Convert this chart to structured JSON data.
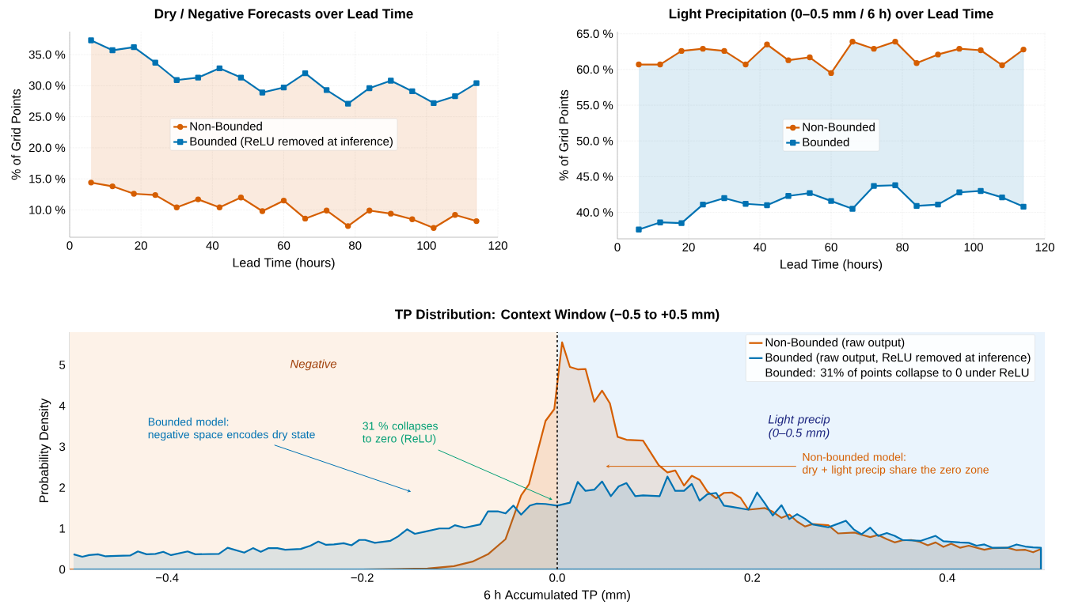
{
  "chart_data": [
    {
      "type": "line",
      "title": "Dry / Negative Forecasts over Lead Time",
      "xlabel": "Lead Time (hours)",
      "ylabel": "% of Grid Points",
      "x": [
        6,
        12,
        18,
        24,
        30,
        36,
        42,
        48,
        54,
        60,
        66,
        72,
        78,
        84,
        90,
        96,
        102,
        108,
        114
      ],
      "series": [
        {
          "name": "Non-Bounded",
          "color": "#d55e00",
          "marker": "circle",
          "values": [
            14.4,
            13.8,
            12.6,
            12.4,
            10.4,
            11.7,
            10.4,
            12.0,
            9.8,
            11.5,
            8.6,
            9.9,
            7.4,
            9.9,
            9.4,
            8.5,
            7.1,
            9.2,
            8.2
          ],
          "lower": [
            14.4,
            13.8,
            12.6,
            12.4,
            10.4,
            11.7,
            10.4,
            12.0,
            9.8,
            11.5,
            8.6,
            9.9,
            7.4,
            9.9,
            9.4,
            8.5,
            7.1,
            9.2,
            8.2
          ],
          "upper": [
            37.3,
            35.7,
            36.2,
            33.7,
            30.9,
            31.3,
            32.8,
            31.3,
            28.9,
            29.7,
            32.0,
            29.3,
            27.1,
            29.6,
            30.8,
            29.1,
            27.2,
            28.3,
            30.4
          ]
        },
        {
          "name": "Bounded (ReLU removed at inference)",
          "color": "#0072b2",
          "marker": "square",
          "values": [
            37.3,
            35.7,
            36.2,
            33.7,
            30.9,
            31.3,
            32.8,
            31.3,
            28.9,
            29.7,
            32.0,
            29.3,
            27.1,
            29.6,
            30.8,
            29.1,
            27.2,
            28.3,
            30.4
          ]
        }
      ],
      "xlim": [
        0,
        120
      ],
      "xticks": [
        0,
        20,
        40,
        60,
        80,
        100,
        120
      ],
      "ylim": [
        5.6,
        38.7
      ],
      "yticks": [
        {
          "value": 10,
          "label": "10.0 %"
        },
        {
          "value": 15,
          "label": "15.0 %"
        },
        {
          "value": 20,
          "label": "20.0 %"
        },
        {
          "value": 25,
          "label": "25.0 %"
        },
        {
          "value": 30,
          "label": "30.0 %"
        },
        {
          "value": 35,
          "label": "35.0 %"
        }
      ],
      "grid": true,
      "legend": "center"
    },
    {
      "type": "line",
      "title": "Light Precipitation (0–0.5 mm / 6 h) over Lead Time",
      "xlabel": "Lead Time (hours)",
      "ylabel": "% of Grid Points",
      "x": [
        6,
        12,
        18,
        24,
        30,
        36,
        42,
        48,
        54,
        60,
        66,
        72,
        78,
        84,
        90,
        96,
        102,
        108,
        114
      ],
      "series": [
        {
          "name": "Non-Bounded",
          "color": "#d55e00",
          "marker": "circle",
          "values": [
            60.7,
            60.7,
            62.6,
            62.9,
            62.6,
            60.7,
            63.5,
            61.3,
            61.7,
            59.5,
            63.9,
            62.9,
            63.9,
            60.9,
            62.1,
            62.9,
            62.7,
            60.6,
            62.8
          ]
        },
        {
          "name": "Bounded",
          "color": "#0072b2",
          "marker": "square",
          "values": [
            37.6,
            38.6,
            38.5,
            41.1,
            42.0,
            41.2,
            41.0,
            42.3,
            42.7,
            41.6,
            40.5,
            43.7,
            43.8,
            40.9,
            41.1,
            42.8,
            43.0,
            42.1,
            40.8
          ],
          "lower": [
            37.6,
            38.6,
            38.5,
            41.1,
            42.0,
            41.2,
            41.0,
            42.3,
            42.7,
            41.6,
            40.5,
            43.7,
            43.8,
            40.9,
            41.1,
            42.8,
            43.0,
            42.1,
            40.8
          ],
          "upper": [
            60.7,
            60.7,
            62.6,
            62.9,
            62.6,
            60.7,
            63.5,
            61.3,
            61.7,
            59.5,
            63.9,
            62.9,
            63.9,
            60.9,
            62.1,
            62.9,
            62.7,
            60.6,
            62.8
          ]
        }
      ],
      "xlim": [
        0,
        120
      ],
      "xticks": [
        0,
        20,
        40,
        60,
        80,
        100,
        120
      ],
      "ylim": [
        36.3,
        65.3
      ],
      "yticks": [
        {
          "value": 40,
          "label": "40.0 %"
        },
        {
          "value": 45,
          "label": "45.0 %"
        },
        {
          "value": 50,
          "label": "50.0 %"
        },
        {
          "value": 55,
          "label": "55.0 %"
        },
        {
          "value": 60,
          "label": "60.0 %"
        },
        {
          "value": 65,
          "label": "65.0 %"
        }
      ],
      "grid": true,
      "legend": "center"
    },
    {
      "type": "area",
      "title": "TP Distribution: Context Window (−0.5 to +0.5 mm)",
      "xlabel": "6 h Accumulated TP (mm)",
      "ylabel": "Probability Density",
      "series": [
        {
          "name": "Non-Bounded (raw output)",
          "color": "#d55e00",
          "x": [
            -0.5,
            -0.3,
            -0.2,
            -0.17,
            -0.133,
            -0.106,
            -0.087,
            -0.071,
            -0.053,
            -0.037,
            -0.029,
            -0.012,
            -0.003,
            0.005,
            0.013,
            0.021,
            0.029,
            0.038,
            0.046,
            0.054,
            0.062,
            0.071,
            0.088,
            0.104,
            0.113,
            0.121,
            0.13,
            0.138,
            0.146,
            0.154,
            0.163,
            0.171,
            0.179,
            0.188,
            0.196,
            0.213,
            0.221,
            0.23,
            0.238,
            0.246,
            0.254,
            0.262,
            0.278,
            0.288,
            0.305,
            0.313,
            0.321,
            0.329,
            0.338,
            0.346,
            0.354,
            0.363,
            0.371,
            0.38,
            0.388,
            0.396,
            0.404,
            0.413,
            0.422,
            0.43,
            0.438,
            0.446,
            0.462,
            0.471,
            0.48,
            0.488,
            0.496
          ],
          "values": [
            0.0,
            0.0,
            0.0,
            0.01,
            0.02,
            0.08,
            0.19,
            0.37,
            0.74,
            1.81,
            2.08,
            3.63,
            3.92,
            5.55,
            4.95,
            4.89,
            4.9,
            4.1,
            4.37,
            4.06,
            3.24,
            3.17,
            3.15,
            2.55,
            2.37,
            2.42,
            2.05,
            2.29,
            2.19,
            1.9,
            1.74,
            1.87,
            1.88,
            1.75,
            1.46,
            1.5,
            1.41,
            1.26,
            1.34,
            1.17,
            1.05,
            1.11,
            1.08,
            0.88,
            0.9,
            0.84,
            0.79,
            0.84,
            0.74,
            0.66,
            0.71,
            0.72,
            0.68,
            0.59,
            0.66,
            0.55,
            0.63,
            0.53,
            0.58,
            0.53,
            0.48,
            0.52,
            0.53,
            0.47,
            0.48,
            0.42,
            0.5
          ]
        },
        {
          "name": "Bounded (raw output, ReLU removed at inference)",
          "color": "#0072b2",
          "x": [
            -0.496,
            -0.487,
            -0.48,
            -0.471,
            -0.463,
            -0.452,
            -0.438,
            -0.43,
            -0.421,
            -0.412,
            -0.404,
            -0.396,
            -0.379,
            -0.371,
            -0.347,
            -0.338,
            -0.321,
            -0.312,
            -0.304,
            -0.296,
            -0.287,
            -0.279,
            -0.263,
            -0.253,
            -0.245,
            -0.237,
            -0.229,
            -0.219,
            -0.211,
            -0.203,
            -0.197,
            -0.187,
            -0.171,
            -0.163,
            -0.154,
            -0.146,
            -0.136,
            -0.121,
            -0.111,
            -0.105,
            -0.095,
            -0.079,
            -0.071,
            -0.061,
            -0.053,
            -0.045,
            -0.037,
            -0.028,
            -0.021,
            -0.012,
            0.0,
            0.013,
            0.021,
            0.029,
            0.038,
            0.046,
            0.055,
            0.063,
            0.071,
            0.08,
            0.088,
            0.105,
            0.113,
            0.121,
            0.13,
            0.138,
            0.146,
            0.154,
            0.163,
            0.171,
            0.179,
            0.196,
            0.205,
            0.213,
            0.221,
            0.23,
            0.238,
            0.246,
            0.254,
            0.262,
            0.278,
            0.286,
            0.296,
            0.304,
            0.312,
            0.321,
            0.329,
            0.338,
            0.346,
            0.354,
            0.373,
            0.388,
            0.396,
            0.413,
            0.422,
            0.43,
            0.438,
            0.446,
            0.462,
            0.471,
            0.48,
            0.488,
            0.496
          ],
          "values": [
            0.37,
            0.31,
            0.35,
            0.37,
            0.32,
            0.33,
            0.34,
            0.44,
            0.37,
            0.38,
            0.43,
            0.35,
            0.44,
            0.37,
            0.38,
            0.53,
            0.41,
            0.52,
            0.43,
            0.52,
            0.52,
            0.48,
            0.5,
            0.58,
            0.68,
            0.6,
            0.61,
            0.64,
            0.59,
            0.72,
            0.72,
            0.65,
            0.7,
            0.81,
            0.98,
            0.87,
            0.92,
            1.0,
            1.0,
            1.08,
            1.02,
            1.1,
            1.42,
            1.42,
            1.37,
            1.56,
            1.34,
            1.56,
            1.61,
            1.6,
            1.56,
            1.63,
            2.14,
            1.92,
            1.95,
            2.15,
            1.79,
            2.03,
            2.11,
            1.79,
            1.81,
            1.79,
            2.27,
            1.92,
            1.92,
            2.09,
            1.68,
            1.84,
            1.87,
            1.56,
            1.53,
            1.46,
            1.88,
            1.61,
            1.32,
            1.57,
            1.23,
            1.35,
            1.24,
            1.1,
            1.03,
            1.1,
            1.19,
            0.98,
            0.86,
            1.02,
            0.82,
            0.89,
            0.82,
            0.72,
            0.7,
            0.82,
            0.69,
            0.66,
            0.65,
            0.58,
            0.61,
            0.53,
            0.53,
            0.61,
            0.56,
            0.54,
            0.53
          ]
        }
      ],
      "xlim": [
        -0.5,
        0.5
      ],
      "xticks": [
        {
          "value": -0.4,
          "label": "−0.4"
        },
        {
          "value": -0.2,
          "label": "−0.2"
        },
        {
          "value": 0,
          "label": "0.0"
        },
        {
          "value": 0.2,
          "label": "0.2"
        },
        {
          "value": 0.4,
          "label": "0.4"
        }
      ],
      "ylim": [
        0,
        5.8
      ],
      "yticks": [
        0,
        1,
        2,
        3,
        4,
        5
      ],
      "bands": [
        {
          "axis": "x",
          "from": -0.5,
          "to": 0,
          "label": "Negative",
          "color": "#fdf2e8"
        },
        {
          "axis": "x",
          "from": 0,
          "to": 0.5,
          "label": "Light precip\n(0–0.5 mm)",
          "color": "#eaf4fd"
        }
      ],
      "ref_lines": [
        {
          "axis": "x",
          "value": 0,
          "color": "#000000",
          "line_style": "dashed"
        }
      ],
      "annotations": [
        "Bounded: 31% of points collapse to 0 under ReLU",
        "Bounded model:\nnegative space encodes dry state",
        "31 % collapses\nto zero (ReLU)",
        "Non-bounded model:\ndry + light precip share the zero zone"
      ],
      "grid": true,
      "legend": "top right"
    }
  ]
}
